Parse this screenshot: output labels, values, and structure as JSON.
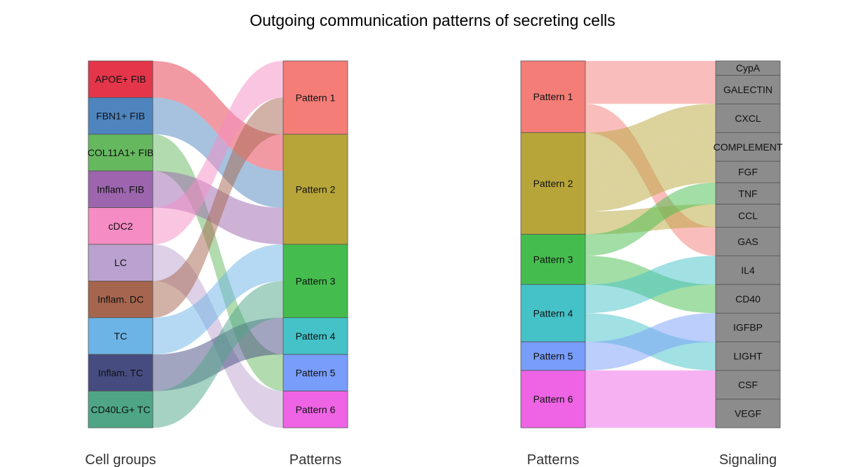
{
  "chart_data": {
    "type": "alluvial",
    "title": "Outgoing communication patterns of secreting cells",
    "panels": [
      {
        "left_axis_label": "Cell groups",
        "right_axis_label": "Patterns",
        "left_nodes": [
          {
            "name": "APOE+ FIB",
            "color": "#E4364A"
          },
          {
            "name": "FBN1+ FIB",
            "color": "#4E85BF"
          },
          {
            "name": "COL11A1+ FIB",
            "color": "#66B85F"
          },
          {
            "name": "Inflam. FIB",
            "color": "#9C65AD"
          },
          {
            "name": "cDC2",
            "color": "#F68CC4"
          },
          {
            "name": "LC",
            "color": "#BBA1CF"
          },
          {
            "name": "Inflam. DC",
            "color": "#A6654E"
          },
          {
            "name": "TC",
            "color": "#6CB4E6"
          },
          {
            "name": "Inflam. TC",
            "color": "#464C80"
          },
          {
            "name": "CD40LG+ TC",
            "color": "#4EA687"
          }
        ],
        "right_nodes": [
          {
            "name": "Pattern 1",
            "color": "#F47D77"
          },
          {
            "name": "Pattern 2",
            "color": "#B8A53A"
          },
          {
            "name": "Pattern 3",
            "color": "#45BD4E"
          },
          {
            "name": "Pattern 4",
            "color": "#44C2C7"
          },
          {
            "name": "Pattern 5",
            "color": "#789DFA"
          },
          {
            "name": "Pattern 6",
            "color": "#EE64E5"
          }
        ],
        "flows": [
          {
            "from": "APOE+ FIB",
            "to": "Pattern 2",
            "value": 1
          },
          {
            "from": "FBN1+ FIB",
            "to": "Pattern 2",
            "value": 1
          },
          {
            "from": "COL11A1+ FIB",
            "to": "Pattern 5",
            "value": 1
          },
          {
            "from": "Inflam. FIB",
            "to": "Pattern 2",
            "value": 1
          },
          {
            "from": "cDC2",
            "to": "Pattern 1",
            "value": 1
          },
          {
            "from": "LC",
            "to": "Pattern 6",
            "value": 1
          },
          {
            "from": "Inflam. DC",
            "to": "Pattern 1",
            "value": 1
          },
          {
            "from": "TC",
            "to": "Pattern 3",
            "value": 1
          },
          {
            "from": "Inflam. TC",
            "to": "Pattern 4",
            "value": 1
          },
          {
            "from": "CD40LG+ TC",
            "to": "Pattern 3",
            "value": 1
          }
        ]
      },
      {
        "left_axis_label": "Patterns",
        "right_axis_label": "Signaling",
        "left_nodes": [
          {
            "name": "Pattern 1",
            "color": "#F47D77"
          },
          {
            "name": "Pattern 2",
            "color": "#B8A53A"
          },
          {
            "name": "Pattern 3",
            "color": "#45BD4E"
          },
          {
            "name": "Pattern 4",
            "color": "#44C2C7"
          },
          {
            "name": "Pattern 5",
            "color": "#789DFA"
          },
          {
            "name": "Pattern 6",
            "color": "#EE64E5"
          }
        ],
        "right_nodes": [
          {
            "name": "CypA",
            "color": "#8C8C8C"
          },
          {
            "name": "GALECTIN",
            "color": "#8C8C8C"
          },
          {
            "name": "CXCL",
            "color": "#8C8C8C"
          },
          {
            "name": "COMPLEMENT",
            "color": "#8C8C8C"
          },
          {
            "name": "FGF",
            "color": "#8C8C8C"
          },
          {
            "name": "TNF",
            "color": "#8C8C8C"
          },
          {
            "name": "CCL",
            "color": "#8C8C8C"
          },
          {
            "name": "GAS",
            "color": "#8C8C8C"
          },
          {
            "name": "IL4",
            "color": "#8C8C8C"
          },
          {
            "name": "CD40",
            "color": "#8C8C8C"
          },
          {
            "name": "IGFBP",
            "color": "#8C8C8C"
          },
          {
            "name": "LIGHT",
            "color": "#8C8C8C"
          },
          {
            "name": "CSF",
            "color": "#8C8C8C"
          },
          {
            "name": "VEGF",
            "color": "#8C8C8C"
          }
        ],
        "flows": [
          {
            "from": "Pattern 1",
            "to": "CypA",
            "value": 1
          },
          {
            "from": "Pattern 1",
            "to": "GALECTIN",
            "value": 2
          },
          {
            "from": "Pattern 1",
            "to": "GAS",
            "value": 2
          },
          {
            "from": "Pattern 2",
            "to": "CXCL",
            "value": 2
          },
          {
            "from": "Pattern 2",
            "to": "COMPLEMENT",
            "value": 2
          },
          {
            "from": "Pattern 2",
            "to": "FGF",
            "value": 1.5
          },
          {
            "from": "Pattern 2",
            "to": "CCL",
            "value": 1.6
          },
          {
            "from": "Pattern 3",
            "to": "TNF",
            "value": 1.5
          },
          {
            "from": "Pattern 3",
            "to": "CCL",
            "value": 0
          },
          {
            "from": "Pattern 3",
            "to": "CD40",
            "value": 2
          },
          {
            "from": "Pattern 4",
            "to": "IL4",
            "value": 2
          },
          {
            "from": "Pattern 4",
            "to": "LIGHT",
            "value": 2
          },
          {
            "from": "Pattern 5",
            "to": "IGFBP",
            "value": 2
          },
          {
            "from": "Pattern 6",
            "to": "CSF",
            "value": 2
          },
          {
            "from": "Pattern 6",
            "to": "VEGF",
            "value": 2
          }
        ]
      }
    ]
  }
}
